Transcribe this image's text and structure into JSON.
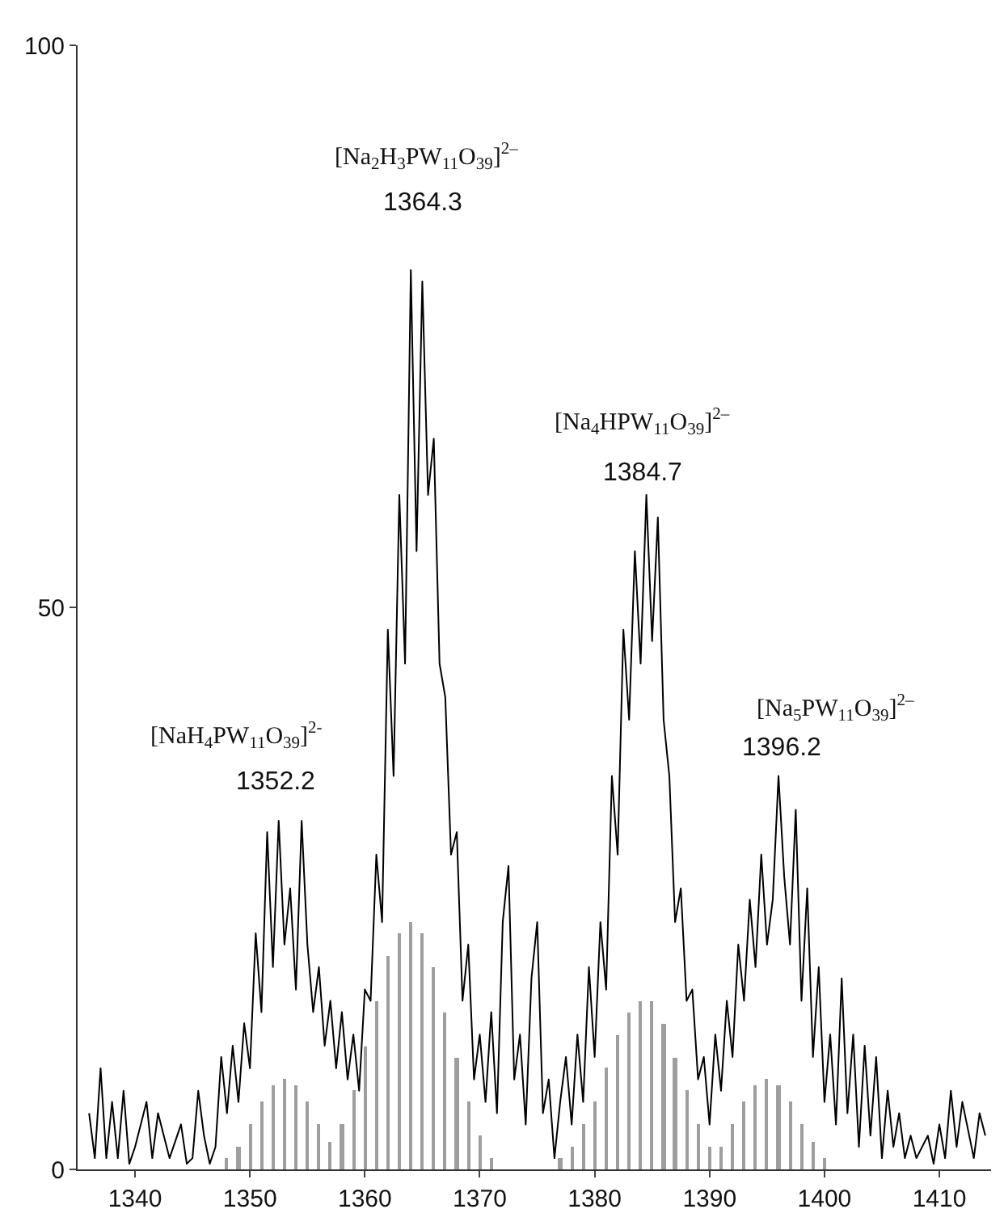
{
  "chart_data": {
    "type": "line",
    "series": [
      {
        "color": "#000000",
        "x": [
          1336,
          1336.5,
          1337,
          1337.5,
          1338,
          1338.5,
          1339,
          1339.5,
          1340,
          1341,
          1341.5,
          1342,
          1343,
          1344,
          1344.5,
          1345,
          1345.5,
          1346,
          1346.5,
          1347,
          1347.5,
          1348,
          1348.5,
          1349,
          1349.5,
          1350,
          1350.5,
          1351,
          1351.5,
          1352,
          1352.5,
          1353,
          1353.5,
          1354,
          1354.5,
          1355,
          1355.5,
          1356,
          1356.5,
          1357,
          1357.5,
          1358,
          1358.5,
          1359,
          1359.5,
          1360,
          1360.5,
          1361,
          1361.5,
          1362,
          1362.5,
          1363,
          1363.5,
          1364,
          1364.5,
          1365,
          1365.5,
          1366,
          1366.5,
          1367,
          1367.5,
          1368,
          1368.5,
          1369,
          1369.5,
          1370,
          1370.5,
          1371,
          1371.5,
          1372,
          1372.5,
          1373,
          1373.5,
          1374,
          1374.5,
          1375,
          1375.5,
          1376,
          1376.5,
          1377,
          1377.5,
          1378,
          1378.5,
          1379,
          1379.5,
          1380,
          1380.5,
          1381,
          1381.5,
          1382,
          1382.5,
          1383,
          1383.5,
          1384,
          1384.5,
          1385,
          1385.5,
          1386,
          1386.5,
          1387,
          1387.5,
          1388,
          1388.5,
          1389,
          1389.5,
          1390,
          1390.5,
          1391,
          1391.5,
          1392,
          1392.5,
          1393,
          1393.5,
          1394,
          1394.5,
          1395,
          1395.5,
          1396,
          1396.5,
          1397,
          1397.5,
          1398,
          1398.5,
          1399,
          1399.5,
          1400,
          1400.5,
          1401,
          1401.5,
          1402,
          1402.5,
          1403,
          1403.5,
          1404,
          1404.5,
          1405,
          1405.5,
          1406,
          1406.5,
          1407,
          1407.5,
          1408,
          1409,
          1409.5,
          1410,
          1410.5,
          1411,
          1411.5,
          1412,
          1413,
          1413.5,
          1414
        ],
        "values": [
          5,
          1,
          9,
          1,
          6,
          1,
          7,
          0.5,
          2,
          6,
          1,
          5,
          1,
          4,
          0.5,
          1,
          7,
          3,
          0.5,
          2,
          10,
          5,
          11,
          6,
          13,
          9,
          21,
          14,
          30,
          18,
          31,
          20,
          25,
          16,
          31,
          20,
          14,
          18,
          11,
          15,
          9,
          14,
          8,
          12,
          7,
          16,
          15,
          28,
          22,
          48,
          35,
          60,
          45,
          80,
          55,
          79,
          60,
          65,
          45,
          42,
          28,
          30,
          15,
          20,
          8,
          12,
          6,
          14,
          5,
          22,
          27,
          8,
          12,
          4,
          17,
          22,
          5,
          8,
          1,
          6,
          10,
          4,
          12,
          6,
          18,
          10,
          22,
          16,
          35,
          28,
          48,
          40,
          55,
          45,
          60,
          47,
          58,
          40,
          35,
          22,
          25,
          15,
          16,
          8,
          10,
          4,
          12,
          7,
          15,
          10,
          20,
          15,
          24,
          18,
          28,
          20,
          24,
          35,
          26,
          20,
          32,
          15,
          25,
          10,
          18,
          6,
          12,
          4,
          17,
          5,
          12,
          2,
          11,
          3,
          10,
          1,
          7,
          2,
          5,
          1,
          3,
          1,
          3,
          0.5,
          4,
          1,
          7,
          2,
          6,
          1,
          5,
          3
        ]
      },
      {
        "type": "bar",
        "color": "#9e9e9e",
        "x": [
          1348,
          1349,
          1350,
          1351,
          1352,
          1353,
          1354,
          1355,
          1356,
          1357,
          1358,
          1359,
          1360,
          1361,
          1362,
          1363,
          1364,
          1365,
          1366,
          1367,
          1368,
          1369,
          1370,
          1371,
          1377,
          1378,
          1379,
          1380,
          1381,
          1382,
          1383,
          1384,
          1385,
          1386,
          1387,
          1388,
          1389,
          1390,
          1391,
          1392,
          1393,
          1394,
          1395,
          1396,
          1397,
          1398,
          1399,
          1400
        ],
        "values": [
          1,
          2,
          4,
          6,
          7.5,
          8,
          7.5,
          6,
          4,
          2.5,
          4,
          7,
          11,
          15,
          19,
          21,
          22,
          21,
          18,
          14,
          10,
          6,
          3,
          1,
          1,
          2,
          4,
          6,
          9,
          12,
          14,
          15,
          15,
          13,
          10,
          7,
          4,
          2,
          2,
          4,
          6,
          7.5,
          8,
          7.5,
          6,
          4,
          2.5,
          1
        ]
      }
    ],
    "xlim": [
      1335,
      1414.5
    ],
    "xticks": [
      1340,
      1350,
      1360,
      1370,
      1380,
      1390,
      1400,
      1410
    ],
    "ylim": [
      0,
      100
    ],
    "yticks": [
      0,
      50,
      100
    ],
    "annotations": [
      "[NaH$_{4}$PW$_{11}$O$_{39}$]$^{2-}$",
      "1352.2",
      "[Na$_{2}$H$_{3}$PW$_{11}$O$_{39}$]$^{2–}$",
      "1364.3",
      "[Na$_{4}$HPW$_{11}$O$_{39}$]$^{2–}$",
      "1384.7",
      "[Na$_{5}$PW$_{11}$O$_{39}$]$^{2–}$",
      "1396.2"
    ]
  }
}
